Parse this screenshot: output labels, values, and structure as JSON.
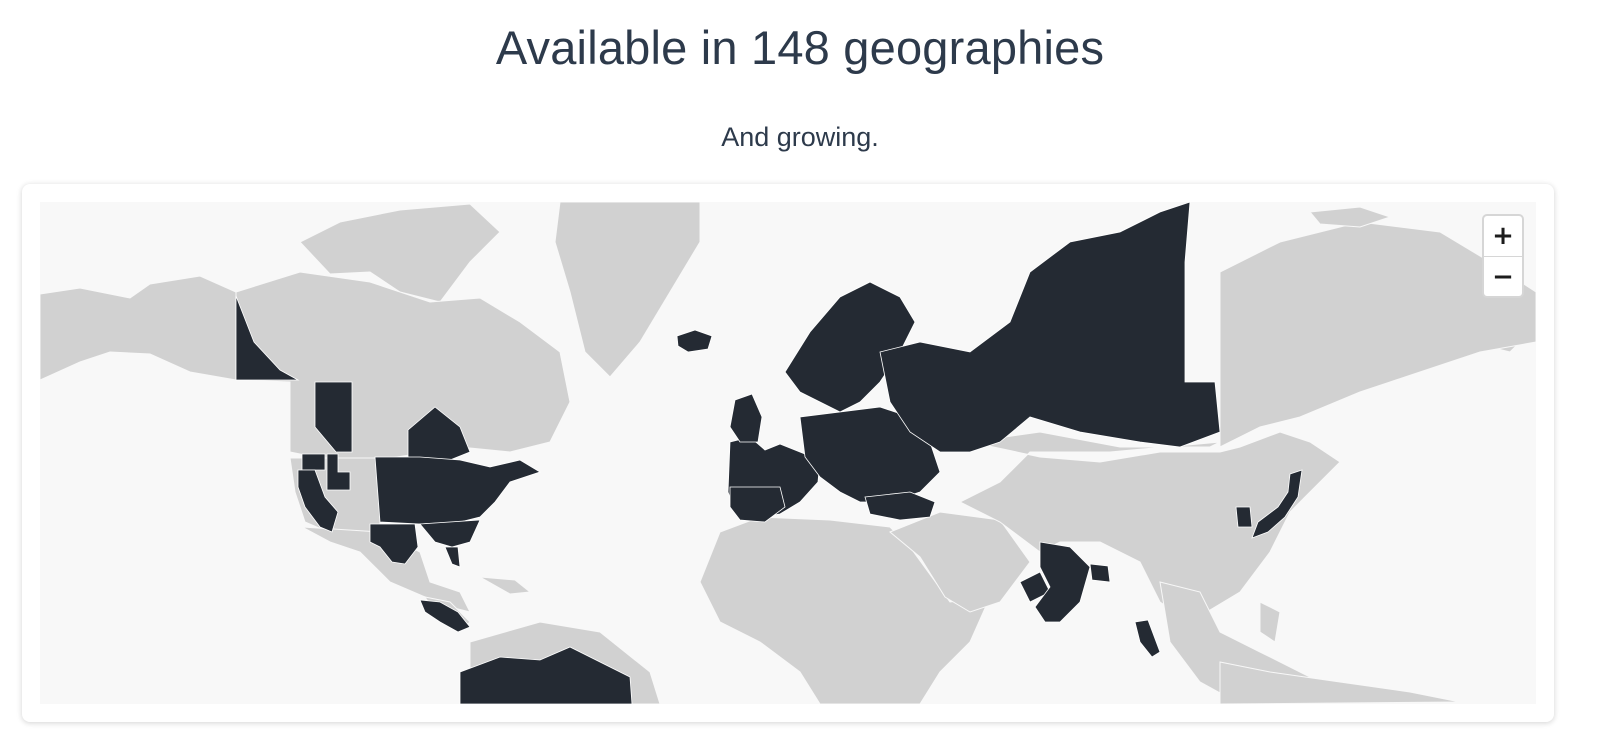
{
  "header": {
    "title": "Available in 148 geographies",
    "subtitle": "And growing."
  },
  "map": {
    "colors": {
      "ocean": "#f8f8f8",
      "land": "#d1d1d1",
      "available": "#242a33"
    },
    "available_regions": [
      "Yukon",
      "Alberta",
      "Ontario",
      "Washington",
      "Idaho",
      "California",
      "Texas",
      "US Midwest and Northeast states",
      "Florida",
      "Iceland",
      "Western and Central Europe",
      "Scandinavia",
      "Turkey",
      "Russia (western)",
      "India (selected states)",
      "Malaysia",
      "Japan",
      "South Korea",
      "Central America",
      "Northern South America"
    ],
    "zoom": {
      "in_label": "+",
      "out_label": "−"
    }
  }
}
